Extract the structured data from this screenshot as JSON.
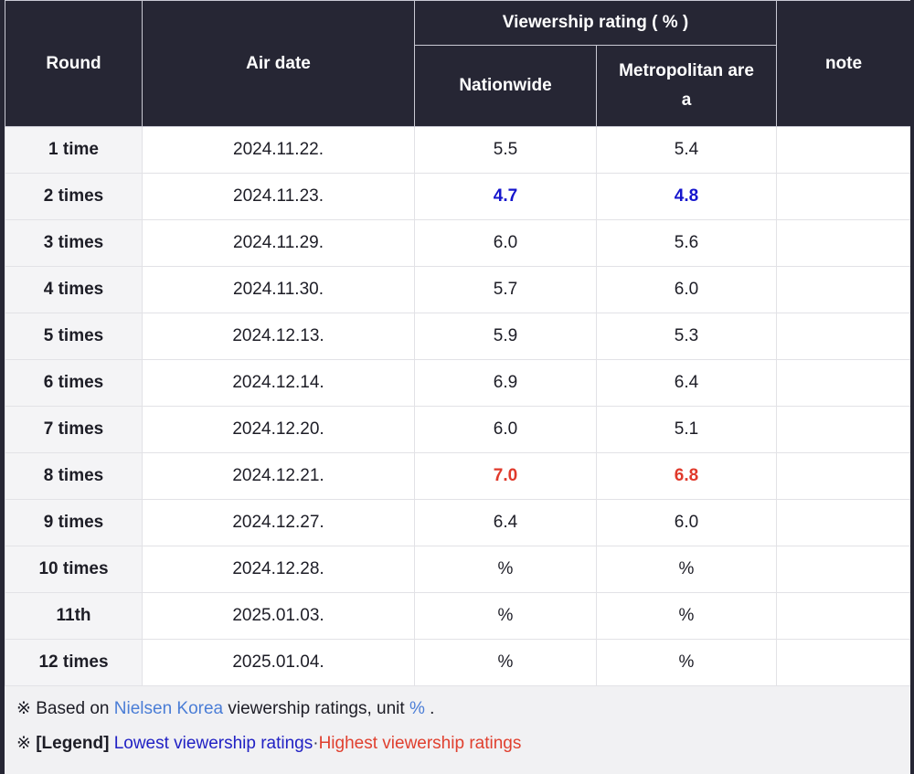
{
  "table": {
    "header": {
      "round": "Round",
      "air_date": "Air date",
      "viewership_group": "Viewership rating ( % )",
      "nationwide": "Nationwide",
      "metropolitan": "Metropolitan area",
      "note": "note"
    },
    "rows": [
      {
        "round": "1 time",
        "air_date": "2024.11.22.",
        "nationwide": "5.5",
        "metropolitan": "5.4",
        "note": ""
      },
      {
        "round": "2 times",
        "air_date": "2024.11.23.",
        "nationwide": "4.7",
        "metropolitan": "4.8",
        "note": ""
      },
      {
        "round": "3 times",
        "air_date": "2024.11.29.",
        "nationwide": "6.0",
        "metropolitan": "5.6",
        "note": ""
      },
      {
        "round": "4 times",
        "air_date": "2024.11.30.",
        "nationwide": "5.7",
        "metropolitan": "6.0",
        "note": ""
      },
      {
        "round": "5 times",
        "air_date": "2024.12.13.",
        "nationwide": "5.9",
        "metropolitan": "5.3",
        "note": ""
      },
      {
        "round": "6 times",
        "air_date": "2024.12.14.",
        "nationwide": "6.9",
        "metropolitan": "6.4",
        "note": ""
      },
      {
        "round": "7 times",
        "air_date": "2024.12.20.",
        "nationwide": "6.0",
        "metropolitan": "5.1",
        "note": ""
      },
      {
        "round": "8 times",
        "air_date": "2024.12.21.",
        "nationwide": "7.0",
        "metropolitan": "6.8",
        "note": ""
      },
      {
        "round": "9 times",
        "air_date": "2024.12.27.",
        "nationwide": "6.4",
        "metropolitan": "6.0",
        "note": ""
      },
      {
        "round": "10 times",
        "air_date": "2024.12.28.",
        "nationwide": "%",
        "metropolitan": "%",
        "note": ""
      },
      {
        "round": "11th",
        "air_date": "2025.01.03.",
        "nationwide": "%",
        "metropolitan": "%",
        "note": ""
      },
      {
        "round": "12 times",
        "air_date": "2025.01.04.",
        "nationwide": "%",
        "metropolitan": "%",
        "note": ""
      }
    ],
    "lowest_rating_rows": [
      "2 times"
    ],
    "highest_rating_rows": [
      "8 times"
    ]
  },
  "footer": {
    "note1": {
      "prefix": "※ Based on ",
      "source_link": "Nielsen Korea",
      "middle": " viewership ratings, unit ",
      "unit_link": "%",
      "suffix": " ."
    },
    "note2": {
      "prefix": "※ ",
      "legend_label": "[Legend]",
      "space": " ",
      "lowest_text": "Lowest viewership ratings",
      "separator": "·",
      "highest_text": "Highest viewership ratings"
    }
  },
  "colors": {
    "header_bg": "#262634",
    "header_text": "#ffffff",
    "round_col_bg": "#f4f4f6",
    "body_text": "#1d1d26",
    "lowest_value": "#1515cd",
    "highest_value": "#e0392b",
    "link_blue": "#4a7dd6",
    "legend_blue": "#2121c4",
    "legend_red": "#e0402f",
    "footer_bg": "#f1f1f3"
  }
}
